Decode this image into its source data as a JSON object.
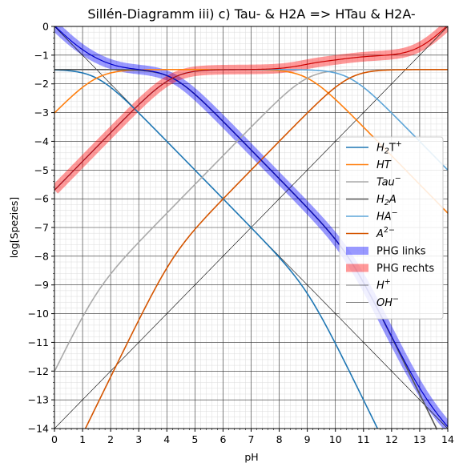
{
  "chart_data": {
    "type": "line",
    "title": "Sillén-Diagramm iii) c) Tau- & H2A => HTau & H2A-",
    "xlabel": "pH",
    "ylabel": "log[Spezies]",
    "xlim": [
      0,
      14
    ],
    "ylim": [
      -14,
      0
    ],
    "xticks": [
      "0",
      "1",
      "2",
      "3",
      "4",
      "5",
      "6",
      "7",
      "8",
      "9",
      "10",
      "11",
      "12",
      "13",
      "14"
    ],
    "yticks": [
      "0",
      "−1",
      "−2",
      "−3",
      "−4",
      "−5",
      "−6",
      "−7",
      "−8",
      "−9",
      "−10",
      "−11",
      "−12",
      "−13",
      "−14"
    ],
    "grid": "major and minor",
    "legend_position": "center-right",
    "params": {
      "c_tau": 0.03162,
      "c_acid": 0.03162,
      "pKs_tau": 9.0,
      "pKs1_acid": 2.1,
      "pKs2_acid": 7.0,
      "pKw": 14
    },
    "series": [
      {
        "name": "H2T+",
        "sub": "2",
        "prefix": "H",
        "suffix": "T",
        "sup": "+",
        "color": "#1f77b4"
      },
      {
        "name": "HT",
        "prefix": "HT",
        "color": "#ff7f0e"
      },
      {
        "name": "Tau−",
        "prefix": "Tau",
        "sup": "−",
        "color": "#aaaaaa"
      },
      {
        "name": "H2A",
        "prefix": "H",
        "sub": "2",
        "suffix": "A",
        "color": "#555555"
      },
      {
        "name": "HA−",
        "prefix": "HA",
        "sup": "−",
        "color": "#5da5d8"
      },
      {
        "name": "A2−",
        "prefix": "A",
        "sup": "2−",
        "color": "#d45500"
      },
      {
        "name": "PHG links",
        "color": "#0000ff"
      },
      {
        "name": "PHG rechts",
        "color": "#ff0000"
      },
      {
        "name": "H+",
        "prefix": "H",
        "sup": "+",
        "color": "#000000"
      },
      {
        "name": "OH−",
        "prefix": "OH",
        "sup": "−",
        "color": "#000000"
      }
    ]
  }
}
